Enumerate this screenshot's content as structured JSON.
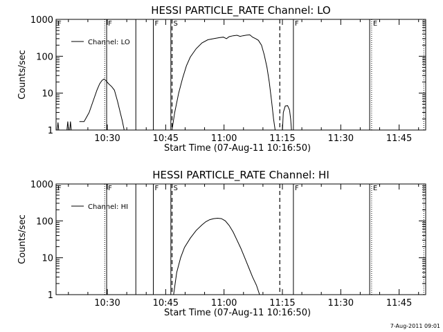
{
  "footer": {
    "timestamp": "7-Aug-2011 09:01"
  },
  "chart_data": [
    {
      "type": "line",
      "title": "HESSI PARTICLE_RATE Channel: LO",
      "xlabel": "Start Time (07-Aug-11 10:16:50)",
      "ylabel": "Counts/sec",
      "x_units": "minutes after 10:16:50",
      "xlim": [
        0,
        95
      ],
      "ylim": [
        1,
        1000
      ],
      "yscale": "log",
      "x_ticks": [
        {
          "x": 13.17,
          "label": "10:30"
        },
        {
          "x": 28.17,
          "label": "10:45"
        },
        {
          "x": 43.17,
          "label": "11:00"
        },
        {
          "x": 58.17,
          "label": "11:15"
        },
        {
          "x": 73.17,
          "label": "11:30"
        },
        {
          "x": 88.17,
          "label": "11:45"
        }
      ],
      "y_ticks": [
        {
          "y": 1,
          "label": "1"
        },
        {
          "y": 10,
          "label": "10"
        },
        {
          "y": 100,
          "label": "100"
        },
        {
          "y": 1000,
          "label": "1000"
        }
      ],
      "legend": {
        "position": "top-left",
        "entries": [
          "Channel: LO"
        ]
      },
      "grid": false,
      "markers": [
        {
          "x": 0.0,
          "style": "dotted",
          "label": "F"
        },
        {
          "x": 12.5,
          "style": "dotted",
          "label": ""
        },
        {
          "x": 13.0,
          "style": "solid",
          "label": "F"
        },
        {
          "x": 20.5,
          "style": "solid",
          "label": ""
        },
        {
          "x": 25.0,
          "style": "solid",
          "label": "F"
        },
        {
          "x": 29.5,
          "style": "solid",
          "label": ""
        },
        {
          "x": 29.8,
          "style": "dashed",
          "label": "S"
        },
        {
          "x": 57.5,
          "style": "dashed",
          "label": ""
        },
        {
          "x": 61.0,
          "style": "solid",
          "label": "F"
        },
        {
          "x": 80.6,
          "style": "solid",
          "label": ""
        },
        {
          "x": 81.1,
          "style": "dotted",
          "label": "E"
        },
        {
          "x": 94.5,
          "style": "dotted",
          "label": ""
        }
      ],
      "series": [
        {
          "name": "Channel: LO",
          "segments": [
            [
              [
                0.3,
                1.0
              ],
              [
                0.5,
                1.6
              ],
              [
                0.7,
                1.0
              ]
            ],
            [
              [
                2.8,
                1.0
              ],
              [
                3.0,
                1.7
              ],
              [
                3.2,
                1.0
              ]
            ],
            [
              [
                3.5,
                1.0
              ],
              [
                3.7,
                1.7
              ],
              [
                3.9,
                1.0
              ]
            ],
            [
              [
                6.0,
                1.7
              ],
              [
                7.2,
                1.7
              ],
              [
                8.5,
                3.0
              ],
              [
                9.5,
                6.0
              ],
              [
                10.5,
                12.0
              ],
              [
                11.2,
                18.0
              ],
              [
                11.8,
                22.0
              ],
              [
                12.3,
                24.0
              ],
              [
                12.8,
                22.0
              ],
              [
                13.5,
                18.0
              ],
              [
                14.3,
                15.0
              ],
              [
                15.0,
                12.0
              ],
              [
                15.8,
                6.0
              ],
              [
                16.5,
                3.0
              ],
              [
                17.0,
                1.8
              ],
              [
                17.5,
                1.0
              ]
            ],
            [
              [
                29.8,
                1.0
              ],
              [
                30.5,
                3.0
              ],
              [
                31.5,
                10.0
              ],
              [
                32.5,
                25.0
              ],
              [
                33.5,
                55.0
              ],
              [
                34.5,
                95.0
              ],
              [
                36.0,
                160.0
              ],
              [
                37.5,
                230.0
              ],
              [
                39.0,
                280.0
              ],
              [
                40.5,
                300.0
              ],
              [
                42.0,
                320.0
              ],
              [
                43.0,
                330.0
              ],
              [
                43.8,
                300.0
              ],
              [
                44.5,
                340.0
              ],
              [
                45.5,
                360.0
              ],
              [
                46.5,
                370.0
              ],
              [
                47.3,
                345.0
              ],
              [
                48.0,
                360.0
              ],
              [
                49.0,
                375.0
              ],
              [
                49.8,
                380.0
              ],
              [
                50.5,
                330.0
              ],
              [
                51.3,
                300.0
              ],
              [
                52.0,
                270.0
              ],
              [
                52.8,
                200.0
              ],
              [
                53.5,
                110.0
              ],
              [
                54.2,
                50.0
              ],
              [
                54.8,
                20.0
              ],
              [
                55.4,
                6.0
              ],
              [
                55.9,
                2.0
              ],
              [
                56.3,
                1.0
              ]
            ],
            [
              [
                58.2,
                1.0
              ],
              [
                58.4,
                3.0
              ],
              [
                58.9,
                4.5
              ],
              [
                59.5,
                4.6
              ],
              [
                60.0,
                3.5
              ],
              [
                60.3,
                2.0
              ],
              [
                60.5,
                1.0
              ]
            ]
          ]
        }
      ]
    },
    {
      "type": "line",
      "title": "HESSI PARTICLE_RATE Channel: HI",
      "xlabel": "Start Time (07-Aug-11 10:16:50)",
      "ylabel": "Counts/sec",
      "x_units": "minutes after 10:16:50",
      "xlim": [
        0,
        95
      ],
      "ylim": [
        1,
        1000
      ],
      "yscale": "log",
      "x_ticks": [
        {
          "x": 13.17,
          "label": "10:30"
        },
        {
          "x": 28.17,
          "label": "10:45"
        },
        {
          "x": 43.17,
          "label": "11:00"
        },
        {
          "x": 58.17,
          "label": "11:15"
        },
        {
          "x": 73.17,
          "label": "11:30"
        },
        {
          "x": 88.17,
          "label": "11:45"
        }
      ],
      "y_ticks": [
        {
          "y": 1,
          "label": "1"
        },
        {
          "y": 10,
          "label": "10"
        },
        {
          "y": 100,
          "label": "100"
        },
        {
          "y": 1000,
          "label": "1000"
        }
      ],
      "legend": {
        "position": "top-left",
        "entries": [
          "Channel: HI"
        ]
      },
      "grid": false,
      "markers": [
        {
          "x": 0.0,
          "style": "dotted",
          "label": "F"
        },
        {
          "x": 12.5,
          "style": "dotted",
          "label": ""
        },
        {
          "x": 13.0,
          "style": "solid",
          "label": "F"
        },
        {
          "x": 20.5,
          "style": "solid",
          "label": ""
        },
        {
          "x": 25.0,
          "style": "solid",
          "label": "F"
        },
        {
          "x": 29.5,
          "style": "solid",
          "label": ""
        },
        {
          "x": 29.8,
          "style": "dashed",
          "label": "S"
        },
        {
          "x": 57.5,
          "style": "dashed",
          "label": ""
        },
        {
          "x": 61.0,
          "style": "solid",
          "label": "F"
        },
        {
          "x": 80.6,
          "style": "solid",
          "label": ""
        },
        {
          "x": 81.1,
          "style": "dotted",
          "label": "E"
        },
        {
          "x": 94.5,
          "style": "dotted",
          "label": ""
        }
      ],
      "series": [
        {
          "name": "Channel: HI",
          "segments": [
            [
              [
                30.2,
                1.0
              ],
              [
                31.0,
                4.0
              ],
              [
                32.0,
                10.0
              ],
              [
                33.0,
                19.0
              ],
              [
                34.5,
                34.0
              ],
              [
                36.0,
                55.0
              ],
              [
                37.5,
                78.0
              ],
              [
                38.5,
                95.0
              ],
              [
                39.5,
                108.0
              ],
              [
                40.5,
                115.0
              ],
              [
                41.5,
                118.0
              ],
              [
                42.5,
                115.0
              ],
              [
                43.5,
                100.0
              ],
              [
                44.5,
                75.0
              ],
              [
                45.5,
                50.0
              ],
              [
                46.5,
                30.0
              ],
              [
                47.5,
                18.0
              ],
              [
                48.5,
                10.0
              ],
              [
                49.5,
                5.5
              ],
              [
                50.5,
                3.0
              ],
              [
                51.5,
                1.8
              ],
              [
                52.3,
                1.0
              ]
            ]
          ]
        }
      ]
    }
  ]
}
